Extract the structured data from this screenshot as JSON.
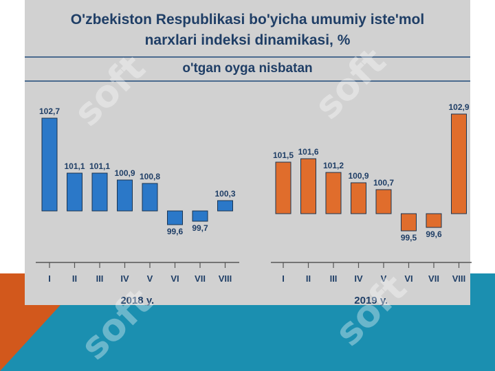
{
  "title_line1": "O'zbekiston Respublikasi bo'yicha umumiy iste'mol",
  "title_line2": "narxlari indeksi dinamikasi, %",
  "subtitle": "o'tgan oyga nisbatan",
  "watermark_text": "soft",
  "colors": {
    "bar_2018": "#2b78c8",
    "bar_2019": "#e06d2c",
    "panel": "#d1d1d1",
    "text": "#1f3e66"
  },
  "chart_data": [
    {
      "type": "bar",
      "baseline": 100,
      "categories": [
        "I",
        "II",
        "III",
        "IV",
        "V",
        "VI",
        "VII",
        "VIII"
      ],
      "values": [
        102.7,
        101.1,
        101.1,
        100.9,
        100.8,
        99.6,
        99.7,
        100.3
      ],
      "labels": [
        "102,7",
        "101,1",
        "101,1",
        "100,9",
        "100,8",
        "99,6",
        "99,7",
        "100,3"
      ],
      "xlabel": "2018 y."
    },
    {
      "type": "bar",
      "baseline": 100,
      "categories": [
        "I",
        "II",
        "III",
        "IV",
        "V",
        "VI",
        "VII",
        "VIII"
      ],
      "values": [
        101.5,
        101.6,
        101.2,
        100.9,
        100.7,
        99.5,
        99.6,
        102.9
      ],
      "labels": [
        "101,5",
        "101,6",
        "101,2",
        "100,9",
        "100,7",
        "99,5",
        "99,6",
        "102,9"
      ],
      "xlabel": "2019 y."
    }
  ]
}
